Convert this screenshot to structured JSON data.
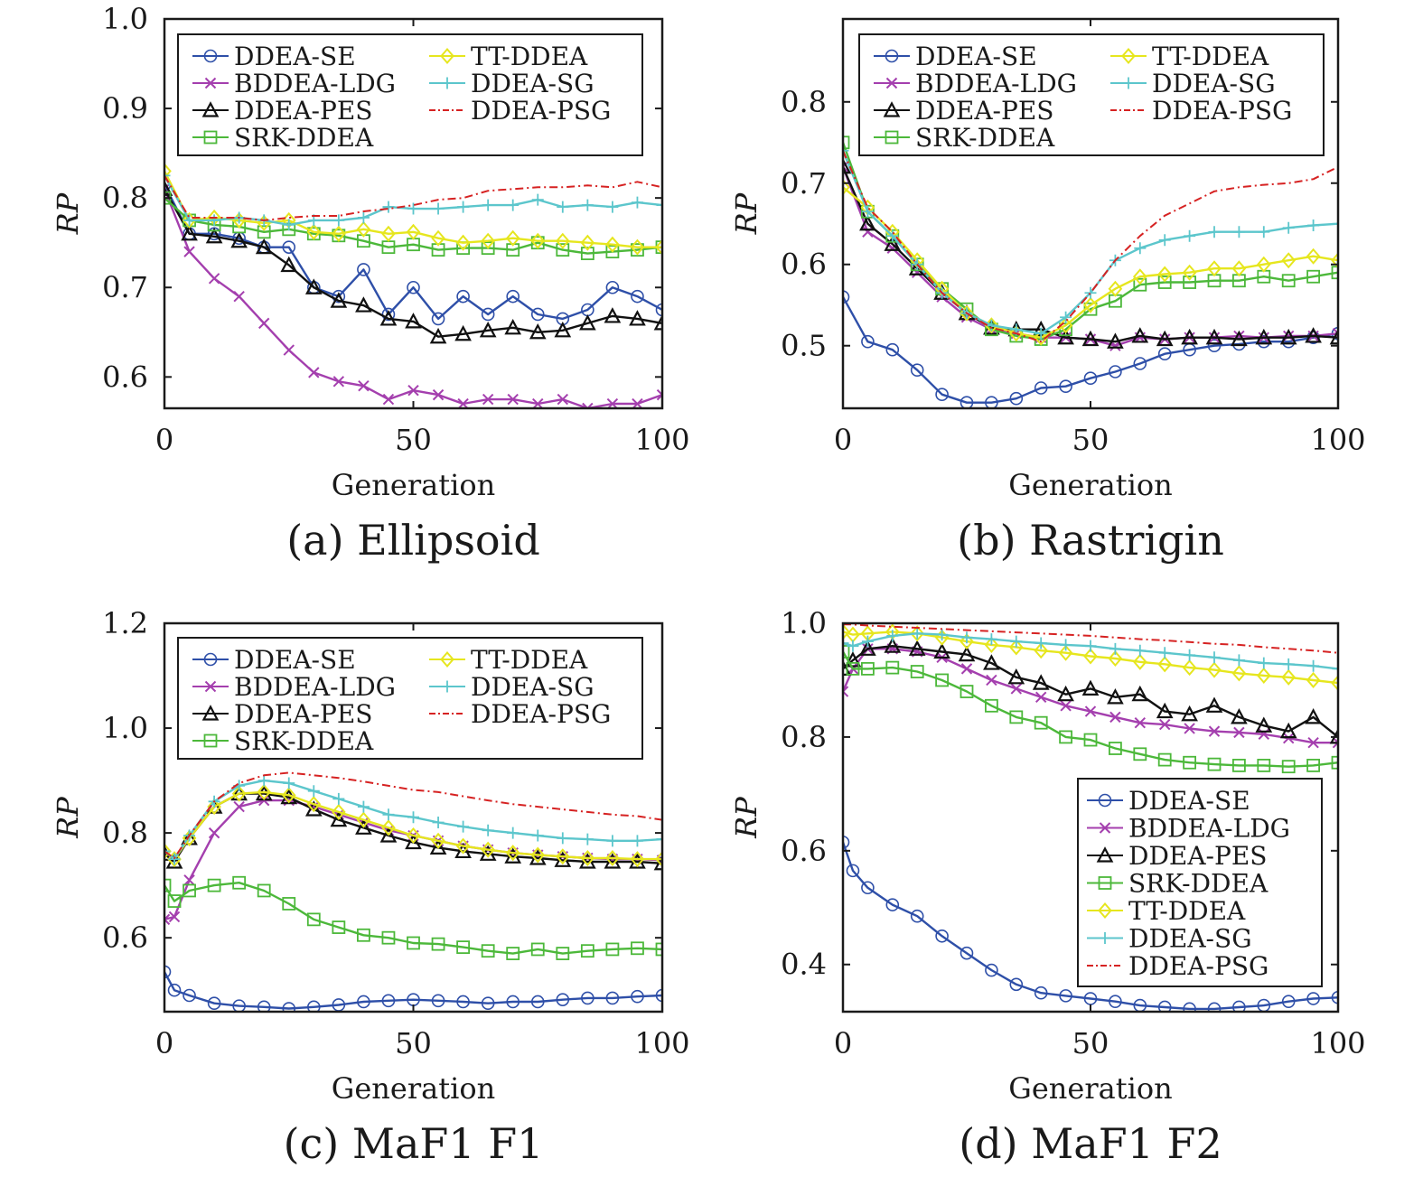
{
  "chart_data": [
    {
      "type": "line",
      "id": "a",
      "caption": "(a) Ellipsoid",
      "xlabel": "Generation",
      "ylabel": "RP",
      "xlim": [
        0,
        100
      ],
      "ylim": [
        0.565,
        1.0
      ],
      "xticks": [
        0,
        50,
        100
      ],
      "yticks": [
        0.6,
        0.7,
        0.8,
        0.9,
        1.0
      ],
      "ytick_labels": [
        "0.6",
        "0.7",
        "0.8",
        "0.9",
        "1.0"
      ],
      "legend": {
        "placement": "top",
        "columns": 2
      },
      "x": [
        0,
        5,
        10,
        15,
        20,
        25,
        30,
        35,
        40,
        45,
        50,
        55,
        60,
        65,
        70,
        75,
        80,
        85,
        90,
        95,
        100
      ],
      "series": [
        {
          "name": "DDEA-SE",
          "values": [
            0.815,
            0.76,
            0.76,
            0.755,
            0.745,
            0.745,
            0.7,
            0.69,
            0.72,
            0.67,
            0.7,
            0.665,
            0.69,
            0.67,
            0.69,
            0.67,
            0.665,
            0.675,
            0.7,
            0.69,
            0.675
          ]
        },
        {
          "name": "BDDEA-LDG",
          "values": [
            0.81,
            0.74,
            0.71,
            0.69,
            0.66,
            0.63,
            0.605,
            0.595,
            0.59,
            0.575,
            0.585,
            0.58,
            0.57,
            0.575,
            0.575,
            0.57,
            0.575,
            0.565,
            0.57,
            0.57,
            0.58
          ]
        },
        {
          "name": "DDEA-PES",
          "values": [
            0.81,
            0.76,
            0.757,
            0.752,
            0.745,
            0.725,
            0.7,
            0.685,
            0.68,
            0.665,
            0.662,
            0.645,
            0.648,
            0.652,
            0.655,
            0.65,
            0.652,
            0.66,
            0.668,
            0.665,
            0.66
          ]
        },
        {
          "name": "SRK-DDEA",
          "values": [
            0.8,
            0.775,
            0.77,
            0.768,
            0.762,
            0.765,
            0.76,
            0.758,
            0.752,
            0.745,
            0.748,
            0.742,
            0.744,
            0.744,
            0.742,
            0.75,
            0.742,
            0.738,
            0.74,
            0.742,
            0.745
          ]
        },
        {
          "name": "TT-DDEA",
          "values": [
            0.83,
            0.775,
            0.778,
            0.775,
            0.772,
            0.775,
            0.762,
            0.76,
            0.765,
            0.76,
            0.762,
            0.755,
            0.75,
            0.752,
            0.755,
            0.752,
            0.752,
            0.75,
            0.748,
            0.745,
            0.745
          ]
        },
        {
          "name": "DDEA-SG",
          "values": [
            0.825,
            0.775,
            0.775,
            0.778,
            0.775,
            0.77,
            0.775,
            0.775,
            0.778,
            0.79,
            0.788,
            0.788,
            0.79,
            0.792,
            0.792,
            0.798,
            0.79,
            0.792,
            0.79,
            0.795,
            0.792
          ]
        },
        {
          "name": "DDEA-PSG",
          "values": [
            0.825,
            0.778,
            0.778,
            0.778,
            0.775,
            0.778,
            0.78,
            0.78,
            0.785,
            0.788,
            0.792,
            0.798,
            0.8,
            0.808,
            0.81,
            0.812,
            0.812,
            0.814,
            0.812,
            0.818,
            0.812
          ]
        }
      ]
    },
    {
      "type": "line",
      "id": "b",
      "caption": "(b) Rastrigin",
      "xlabel": "Generation",
      "ylabel": "RP",
      "xlim": [
        0,
        100
      ],
      "ylim": [
        0.423,
        0.902
      ],
      "xticks": [
        0,
        50,
        100
      ],
      "yticks": [
        0.5,
        0.6,
        0.7,
        0.8
      ],
      "ytick_labels": [
        "0.5",
        "0.6",
        "0.7",
        "0.8"
      ],
      "legend": {
        "placement": "top",
        "columns": 2
      },
      "x": [
        0,
        5,
        10,
        15,
        20,
        25,
        30,
        35,
        40,
        45,
        50,
        55,
        60,
        65,
        70,
        75,
        80,
        85,
        90,
        95,
        100
      ],
      "series": [
        {
          "name": "DDEA-SE",
          "values": [
            0.56,
            0.505,
            0.495,
            0.47,
            0.44,
            0.43,
            0.43,
            0.435,
            0.448,
            0.45,
            0.46,
            0.468,
            0.478,
            0.49,
            0.495,
            0.5,
            0.502,
            0.505,
            0.505,
            0.51,
            0.515
          ]
        },
        {
          "name": "BDDEA-LDG",
          "values": [
            0.72,
            0.64,
            0.62,
            0.59,
            0.56,
            0.535,
            0.52,
            0.515,
            0.51,
            0.51,
            0.508,
            0.5,
            0.51,
            0.508,
            0.51,
            0.51,
            0.512,
            0.51,
            0.512,
            0.512,
            0.515
          ]
        },
        {
          "name": "DDEA-PES",
          "values": [
            0.72,
            0.65,
            0.625,
            0.595,
            0.565,
            0.54,
            0.522,
            0.52,
            0.52,
            0.51,
            0.508,
            0.505,
            0.512,
            0.508,
            0.51,
            0.51,
            0.508,
            0.51,
            0.51,
            0.512,
            0.51
          ]
        },
        {
          "name": "SRK-DDEA",
          "values": [
            0.75,
            0.665,
            0.635,
            0.6,
            0.57,
            0.545,
            0.52,
            0.512,
            0.508,
            0.52,
            0.545,
            0.555,
            0.575,
            0.578,
            0.578,
            0.58,
            0.58,
            0.585,
            0.58,
            0.585,
            0.59
          ]
        },
        {
          "name": "TT-DDEA",
          "values": [
            0.695,
            0.67,
            0.64,
            0.605,
            0.57,
            0.54,
            0.525,
            0.515,
            0.51,
            0.525,
            0.55,
            0.57,
            0.585,
            0.588,
            0.59,
            0.595,
            0.595,
            0.6,
            0.605,
            0.61,
            0.605
          ]
        },
        {
          "name": "DDEA-SG",
          "values": [
            0.74,
            0.665,
            0.635,
            0.6,
            0.565,
            0.54,
            0.525,
            0.52,
            0.515,
            0.535,
            0.565,
            0.605,
            0.62,
            0.63,
            0.635,
            0.64,
            0.64,
            0.64,
            0.645,
            0.648,
            0.65
          ]
        },
        {
          "name": "DDEA-PSG",
          "values": [
            0.74,
            0.67,
            0.64,
            0.6,
            0.565,
            0.54,
            0.522,
            0.515,
            0.505,
            0.53,
            0.565,
            0.605,
            0.635,
            0.66,
            0.675,
            0.69,
            0.695,
            0.698,
            0.7,
            0.705,
            0.72
          ]
        }
      ]
    },
    {
      "type": "line",
      "id": "c",
      "caption": "(c) MaF1 F1",
      "xlabel": "Generation",
      "ylabel": "RP",
      "xlim": [
        0,
        100
      ],
      "ylim": [
        0.459,
        1.2
      ],
      "xticks": [
        0,
        50,
        100
      ],
      "yticks": [
        0.6,
        0.8,
        1.0,
        1.2
      ],
      "ytick_labels": [
        "0.6",
        "0.8",
        "1.0",
        "1.2"
      ],
      "legend": {
        "placement": "top",
        "columns": 2
      },
      "x": [
        0,
        2,
        5,
        10,
        15,
        20,
        25,
        30,
        35,
        40,
        45,
        50,
        55,
        60,
        65,
        70,
        75,
        80,
        85,
        90,
        95,
        100
      ],
      "series": [
        {
          "name": "DDEA-SE",
          "values": [
            0.535,
            0.5,
            0.49,
            0.475,
            0.47,
            0.468,
            0.465,
            0.468,
            0.472,
            0.478,
            0.48,
            0.482,
            0.48,
            0.478,
            0.475,
            0.478,
            0.478,
            0.482,
            0.485,
            0.485,
            0.488,
            0.49
          ]
        },
        {
          "name": "BDDEA-LDG",
          "values": [
            0.635,
            0.64,
            0.71,
            0.8,
            0.85,
            0.862,
            0.862,
            0.85,
            0.835,
            0.82,
            0.805,
            0.795,
            0.785,
            0.775,
            0.768,
            0.762,
            0.758,
            0.755,
            0.752,
            0.75,
            0.75,
            0.748
          ]
        },
        {
          "name": "DDEA-PES",
          "values": [
            0.76,
            0.745,
            0.79,
            0.85,
            0.875,
            0.875,
            0.868,
            0.845,
            0.825,
            0.81,
            0.795,
            0.782,
            0.772,
            0.765,
            0.76,
            0.755,
            0.752,
            0.748,
            0.745,
            0.745,
            0.745,
            0.742
          ]
        },
        {
          "name": "SRK-DDEA",
          "values": [
            0.7,
            0.67,
            0.69,
            0.7,
            0.705,
            0.69,
            0.665,
            0.635,
            0.62,
            0.605,
            0.6,
            0.59,
            0.588,
            0.582,
            0.575,
            0.57,
            0.578,
            0.57,
            0.575,
            0.578,
            0.58,
            0.578
          ]
        },
        {
          "name": "TT-DDEA",
          "values": [
            0.765,
            0.75,
            0.79,
            0.85,
            0.875,
            0.878,
            0.872,
            0.855,
            0.84,
            0.825,
            0.81,
            0.795,
            0.785,
            0.775,
            0.768,
            0.762,
            0.758,
            0.755,
            0.752,
            0.752,
            0.75,
            0.75
          ]
        },
        {
          "name": "DDEA-SG",
          "values": [
            0.765,
            0.75,
            0.795,
            0.86,
            0.89,
            0.9,
            0.895,
            0.88,
            0.865,
            0.85,
            0.835,
            0.83,
            0.82,
            0.812,
            0.805,
            0.8,
            0.795,
            0.79,
            0.788,
            0.785,
            0.785,
            0.788
          ]
        },
        {
          "name": "DDEA-PSG",
          "values": [
            0.765,
            0.752,
            0.795,
            0.86,
            0.895,
            0.91,
            0.915,
            0.91,
            0.905,
            0.898,
            0.89,
            0.882,
            0.878,
            0.87,
            0.862,
            0.855,
            0.85,
            0.845,
            0.84,
            0.835,
            0.832,
            0.825
          ]
        }
      ]
    },
    {
      "type": "line",
      "id": "d",
      "caption": "(d) MaF1 F2",
      "xlabel": "Generation",
      "ylabel": "RP",
      "xlim": [
        0,
        100
      ],
      "ylim": [
        0.317,
        1.0
      ],
      "xticks": [
        0,
        50,
        100
      ],
      "yticks": [
        0.4,
        0.6,
        0.8,
        1.0
      ],
      "ytick_labels": [
        "0.4",
        "0.6",
        "0.8",
        "1.0"
      ],
      "legend": {
        "placement": "bottom-right",
        "columns": 1
      },
      "x": [
        0,
        2,
        5,
        10,
        15,
        20,
        25,
        30,
        35,
        40,
        45,
        50,
        55,
        60,
        65,
        70,
        75,
        80,
        85,
        90,
        95,
        100
      ],
      "series": [
        {
          "name": "DDEA-SE",
          "values": [
            0.615,
            0.565,
            0.535,
            0.505,
            0.485,
            0.45,
            0.42,
            0.39,
            0.365,
            0.35,
            0.345,
            0.34,
            0.335,
            0.328,
            0.325,
            0.322,
            0.322,
            0.325,
            0.328,
            0.335,
            0.34,
            0.342
          ]
        },
        {
          "name": "BDDEA-LDG",
          "values": [
            0.88,
            0.92,
            0.955,
            0.955,
            0.95,
            0.94,
            0.92,
            0.9,
            0.885,
            0.87,
            0.855,
            0.845,
            0.835,
            0.825,
            0.822,
            0.815,
            0.81,
            0.808,
            0.805,
            0.798,
            0.79,
            0.79
          ]
        },
        {
          "name": "DDEA-PES",
          "values": [
            0.92,
            0.935,
            0.955,
            0.96,
            0.955,
            0.95,
            0.945,
            0.93,
            0.905,
            0.895,
            0.875,
            0.885,
            0.87,
            0.875,
            0.845,
            0.84,
            0.855,
            0.835,
            0.82,
            0.81,
            0.835,
            0.8
          ]
        },
        {
          "name": "SRK-DDEA",
          "values": [
            0.95,
            0.92,
            0.92,
            0.922,
            0.915,
            0.9,
            0.88,
            0.855,
            0.835,
            0.825,
            0.8,
            0.795,
            0.78,
            0.77,
            0.76,
            0.755,
            0.752,
            0.75,
            0.75,
            0.748,
            0.75,
            0.755
          ]
        },
        {
          "name": "TT-DDEA",
          "values": [
            0.985,
            0.98,
            0.982,
            0.985,
            0.982,
            0.975,
            0.968,
            0.962,
            0.958,
            0.952,
            0.948,
            0.942,
            0.938,
            0.932,
            0.928,
            0.922,
            0.918,
            0.912,
            0.908,
            0.905,
            0.9,
            0.895
          ]
        },
        {
          "name": "DDEA-SG",
          "values": [
            0.965,
            0.96,
            0.968,
            0.978,
            0.982,
            0.98,
            0.975,
            0.972,
            0.968,
            0.965,
            0.962,
            0.96,
            0.955,
            0.952,
            0.948,
            0.944,
            0.94,
            0.935,
            0.93,
            0.928,
            0.925,
            0.92
          ]
        },
        {
          "name": "DDEA-PSG",
          "values": [
            0.998,
            0.998,
            0.996,
            0.994,
            0.992,
            0.99,
            0.988,
            0.986,
            0.984,
            0.982,
            0.98,
            0.978,
            0.975,
            0.972,
            0.97,
            0.967,
            0.964,
            0.962,
            0.958,
            0.955,
            0.952,
            0.948
          ]
        }
      ]
    }
  ],
  "series_style": {
    "DDEA-SE": {
      "color": "#2e4fa8",
      "marker": "circle",
      "dash": "none"
    },
    "BDDEA-LDG": {
      "color": "#a43fae",
      "marker": "x",
      "dash": "none"
    },
    "DDEA-PES": {
      "color": "#111111",
      "marker": "triangle",
      "dash": "none"
    },
    "SRK-DDEA": {
      "color": "#4cb83a",
      "marker": "square",
      "dash": "none"
    },
    "TT-DDEA": {
      "color": "#e6e61e",
      "marker": "diamond",
      "dash": "none"
    },
    "DDEA-SG": {
      "color": "#5cc6cc",
      "marker": "plus",
      "dash": "none"
    },
    "DDEA-PSG": {
      "color": "#d62222",
      "marker": "none",
      "dash": "dashdot"
    }
  },
  "legend_order": {
    "two_column": [
      [
        "DDEA-SE",
        "TT-DDEA"
      ],
      [
        "BDDEA-LDG",
        "DDEA-SG"
      ],
      [
        "DDEA-PES",
        "DDEA-PSG"
      ],
      [
        "SRK-DDEA",
        null
      ]
    ],
    "one_column": [
      "DDEA-SE",
      "BDDEA-LDG",
      "DDEA-PES",
      "SRK-DDEA",
      "TT-DDEA",
      "DDEA-SG",
      "DDEA-PSG"
    ]
  }
}
